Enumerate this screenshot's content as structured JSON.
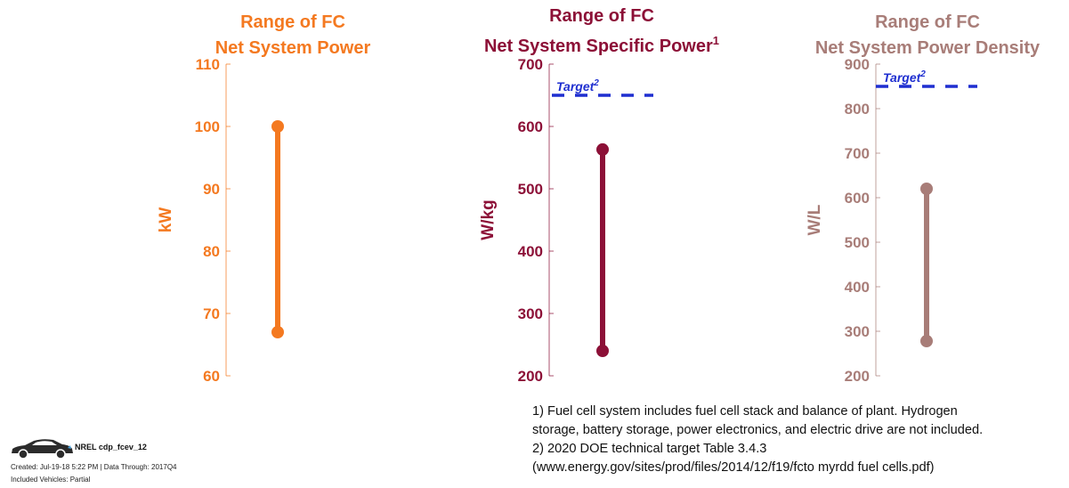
{
  "chart_data": [
    {
      "type": "range",
      "title": [
        "Range of FC",
        "Net System Power"
      ],
      "title_superscript": "",
      "ylabel": "kW",
      "ylim": [
        60,
        110
      ],
      "yticks": [
        60,
        70,
        80,
        90,
        100,
        110
      ],
      "range": {
        "min": 67,
        "max": 100
      },
      "target": null,
      "color": "#F47920"
    },
    {
      "type": "range",
      "title": [
        "Range of FC",
        "Net System Specific Power"
      ],
      "title_superscript": "1",
      "ylabel": "W/kg",
      "ylim": [
        200,
        700
      ],
      "yticks": [
        200,
        300,
        400,
        500,
        600,
        700
      ],
      "range": {
        "min": 240,
        "max": 563
      },
      "target": {
        "value": 650,
        "label": "Target",
        "superscript": "2",
        "color": "#1F2FD0"
      },
      "color": "#8C1037"
    },
    {
      "type": "range",
      "title": [
        "Range of FC",
        "Net System Power Density"
      ],
      "title_superscript": "",
      "ylabel": "W/L",
      "ylim": [
        200,
        900
      ],
      "yticks": [
        200,
        300,
        400,
        500,
        600,
        700,
        800,
        900
      ],
      "range": {
        "min": 278,
        "max": 620
      },
      "target": {
        "value": 850,
        "label": "Target",
        "superscript": "2",
        "color": "#1F2FD0"
      },
      "color": "#A87D78"
    }
  ],
  "footnotes": [
    "1) Fuel cell system includes fuel cell stack and balance of plant. Hydrogen",
    "storage, battery storage, power electronics, and electric drive are not included.",
    "2) 2020 DOE technical target Table 3.4.3",
    "(www.energy.gov/sites/prod/files/2014/12/f19/fcto myrdd fuel cells.pdf)"
  ],
  "stamp": {
    "title": "NREL cdp_fcev_12",
    "created": "Created: Jul-19-18  5:22 PM | Data Through: 2017Q4",
    "included": "Included Vehicles: Partial",
    "icon": "car-icon"
  }
}
